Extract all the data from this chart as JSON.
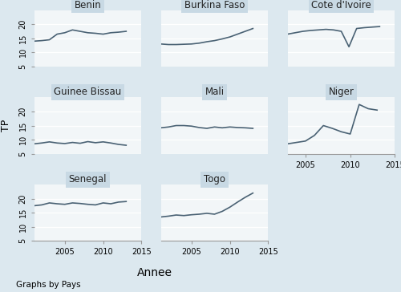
{
  "countries": [
    "Benin",
    "Burkina Faso",
    "Cote d'Ivoire",
    "Guinee Bissau",
    "Mali",
    "Niger",
    "Senegal",
    "Togo"
  ],
  "data": {
    "Benin": {
      "x": [
        2001,
        2002,
        2003,
        2004,
        2005,
        2006,
        2007,
        2008,
        2009,
        2010,
        2011,
        2012,
        2013
      ],
      "y": [
        14.0,
        14.2,
        14.5,
        16.5,
        17.0,
        18.0,
        17.5,
        17.0,
        16.8,
        16.5,
        17.0,
        17.2,
        17.5
      ]
    },
    "Burkina Faso": {
      "x": [
        2001,
        2002,
        2003,
        2004,
        2005,
        2006,
        2007,
        2008,
        2009,
        2010,
        2011,
        2012,
        2013
      ],
      "y": [
        13.0,
        12.8,
        12.8,
        12.9,
        13.0,
        13.3,
        13.8,
        14.2,
        14.8,
        15.5,
        16.5,
        17.5,
        18.5
      ]
    },
    "Cote d'Ivoire": {
      "x": [
        2001,
        2002,
        2003,
        2004,
        2005,
        2006,
        2007,
        2008,
        2009,
        2010,
        2011,
        2012,
        2013
      ],
      "y": [
        16.5,
        17.0,
        17.5,
        17.8,
        18.0,
        18.2,
        18.0,
        17.5,
        12.0,
        18.5,
        18.8,
        19.0,
        19.2
      ]
    },
    "Guinee Bissau": {
      "x": [
        2001,
        2002,
        2003,
        2004,
        2005,
        2006,
        2007,
        2008,
        2009,
        2010,
        2011,
        2012,
        2013
      ],
      "y": [
        8.5,
        8.8,
        9.2,
        8.8,
        8.6,
        9.0,
        8.7,
        9.3,
        8.9,
        9.2,
        8.8,
        8.3,
        8.0
      ]
    },
    "Mali": {
      "x": [
        2001,
        2002,
        2003,
        2004,
        2005,
        2006,
        2007,
        2008,
        2009,
        2010,
        2011,
        2012,
        2013
      ],
      "y": [
        14.2,
        14.5,
        15.0,
        15.0,
        14.8,
        14.3,
        14.0,
        14.5,
        14.2,
        14.5,
        14.3,
        14.2,
        14.0
      ]
    },
    "Niger": {
      "x": [
        2003,
        2004,
        2005,
        2006,
        2007,
        2008,
        2009,
        2010,
        2011,
        2012,
        2013
      ],
      "y": [
        8.5,
        9.0,
        9.5,
        11.5,
        15.0,
        14.0,
        12.8,
        12.0,
        22.5,
        21.0,
        20.5
      ]
    },
    "Senegal": {
      "x": [
        2001,
        2002,
        2003,
        2004,
        2005,
        2006,
        2007,
        2008,
        2009,
        2010,
        2011,
        2012,
        2013
      ],
      "y": [
        17.5,
        17.8,
        18.5,
        18.2,
        18.0,
        18.5,
        18.3,
        18.0,
        17.8,
        18.5,
        18.2,
        18.8,
        19.0
      ]
    },
    "Togo": {
      "x": [
        2001,
        2002,
        2003,
        2004,
        2005,
        2006,
        2007,
        2008,
        2009,
        2010,
        2011,
        2012,
        2013
      ],
      "y": [
        13.5,
        13.8,
        14.2,
        14.0,
        14.3,
        14.5,
        14.8,
        14.5,
        15.5,
        17.0,
        18.8,
        20.5,
        22.0
      ]
    }
  },
  "ylim": [
    5,
    25
  ],
  "yticks": [
    5,
    10,
    15,
    20
  ],
  "xlim_main": [
    2001,
    2015
  ],
  "xlim_niger": [
    2003,
    2015
  ],
  "xticks": [
    2005,
    2010,
    2015
  ],
  "line_color": "#4a6274",
  "line_width": 1.2,
  "panel_bg": "#f2f6f8",
  "outer_bg": "#dce8ef",
  "title_bg": "#c8d9e4",
  "title_fg": "#222222",
  "grid_color": "#ffffff",
  "spine_color": "#999999",
  "ylabel": "TP",
  "xlabel": "Annee",
  "footer": "Graphs by Pays",
  "title_fontsize": 8.5,
  "label_fontsize": 9,
  "tick_fontsize": 7,
  "footer_fontsize": 7.5
}
